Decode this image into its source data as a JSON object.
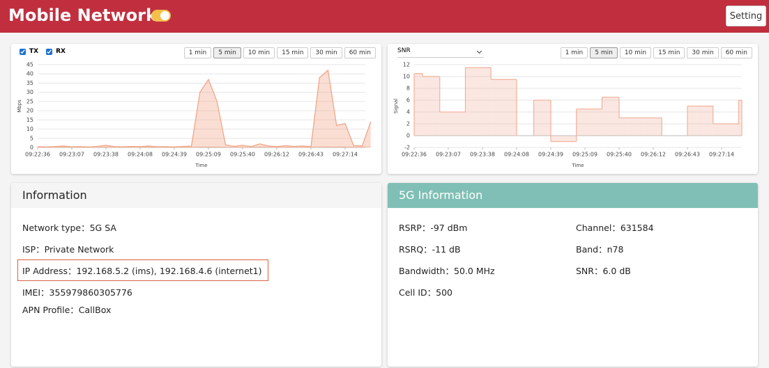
{
  "header": {
    "title": "Mobile Network",
    "button": "Setting",
    "toggle_on": true
  },
  "controls": [
    {
      "checkboxes": [
        "TX",
        "RX"
      ],
      "ranges": [
        "1 min",
        "5 min",
        "10 min",
        "15 min",
        "30 min",
        "60 min"
      ],
      "active_range": 1
    },
    {
      "select": "SNR",
      "ranges": [
        "1 min",
        "5 min",
        "10 min",
        "15 min",
        "30 min",
        "60 min"
      ],
      "active_range": 1
    }
  ],
  "chart_data": [
    {
      "type": "area",
      "x_label": "Time",
      "y_label": "Mbps",
      "grid": true,
      "categories": [
        "09:22:36",
        null,
        null,
        null,
        "09:23:07",
        null,
        null,
        null,
        "09:23:38",
        null,
        null,
        null,
        "09:24:08",
        null,
        null,
        null,
        "09:24:39",
        null,
        null,
        null,
        "09:25:09",
        null,
        null,
        null,
        "09:25:40",
        null,
        null,
        null,
        "09:26:12",
        null,
        null,
        null,
        "09:26:43",
        null,
        null,
        null,
        "09:27:14",
        null,
        null,
        null
      ],
      "series": [
        {
          "name": "TX",
          "color": "#f7c7ae",
          "values": [
            0.2,
            0.2,
            0.2,
            0.3,
            0.2,
            0.2,
            0.2,
            0.2,
            0.3,
            0.2,
            0.2,
            0.2,
            0.2,
            0.3,
            0.2,
            0.2,
            0.2,
            0.2,
            0.2,
            0.3,
            0.3,
            0.3,
            0.2,
            0.2,
            0.2,
            0.2,
            0.3,
            0.2,
            0.2,
            0.2,
            0.2,
            0.2,
            0.2,
            0.3,
            0.3,
            0.3,
            0.3,
            0.2,
            0.2,
            0.3
          ]
        },
        {
          "name": "RX",
          "color": "#f0a080",
          "values": [
            0.5,
            0.3,
            0.5,
            0.8,
            0.4,
            0.5,
            0.3,
            0.6,
            1.2,
            0.5,
            0.4,
            0.6,
            0.5,
            0.8,
            0.4,
            0.5,
            0.3,
            0.6,
            0.7,
            30,
            37,
            25,
            1.5,
            0.6,
            1.2,
            0.5,
            2,
            0.8,
            0.5,
            1,
            0.6,
            0.8,
            0.5,
            38,
            42,
            12,
            13,
            1,
            0.8,
            14
          ]
        }
      ],
      "ylim": [
        0,
        45
      ],
      "yticks": [
        0,
        5,
        10,
        15,
        20,
        25,
        30,
        35,
        40,
        45
      ]
    },
    {
      "type": "step",
      "x_label": "Time",
      "y_label": "Signal",
      "grid": true,
      "color": "#f2b09a",
      "categories": [
        "09:22:36",
        null,
        null,
        null,
        "09:23:07",
        null,
        null,
        null,
        "09:23:38",
        null,
        null,
        null,
        "09:24:08",
        null,
        null,
        null,
        "09:24:39",
        null,
        null,
        null,
        "09:25:09",
        null,
        null,
        null,
        "09:25:40",
        null,
        null,
        null,
        "09:26:12",
        null,
        null,
        null,
        "09:26:43",
        null,
        null,
        null,
        "09:27:14",
        null,
        null
      ],
      "values": [
        10.5,
        10,
        10,
        4,
        4,
        4,
        11.5,
        11.5,
        11.5,
        9.5,
        9.5,
        9.5,
        null,
        null,
        6,
        6,
        -1,
        -1,
        -1,
        4.5,
        4.5,
        4.5,
        6.5,
        6.5,
        3,
        3,
        3,
        3,
        3,
        null,
        null,
        null,
        5,
        5,
        5,
        2,
        2,
        2,
        6
      ],
      "ylim": [
        -2,
        12
      ],
      "yticks": [
        -2,
        0,
        2,
        4,
        6,
        8,
        10,
        12
      ]
    }
  ],
  "information": {
    "title": "Information",
    "highlight": 2,
    "rows": [
      "Network type：5G SA",
      "ISP：Private Network",
      "IP Address：192.168.5.2 (ims), 192.168.4.6 (internet1)",
      "IMEI：355979860305776",
      "APN Profile：CallBox"
    ]
  },
  "info_5g": {
    "title": "5G Information",
    "left": [
      "RSRP：-97 dBm",
      "RSRQ：-11 dB",
      "Bandwidth：50.0 MHz",
      "Cell ID：500"
    ],
    "right": [
      "Channel：631584",
      "Band：n78",
      "SNR：6.0 dB"
    ]
  }
}
